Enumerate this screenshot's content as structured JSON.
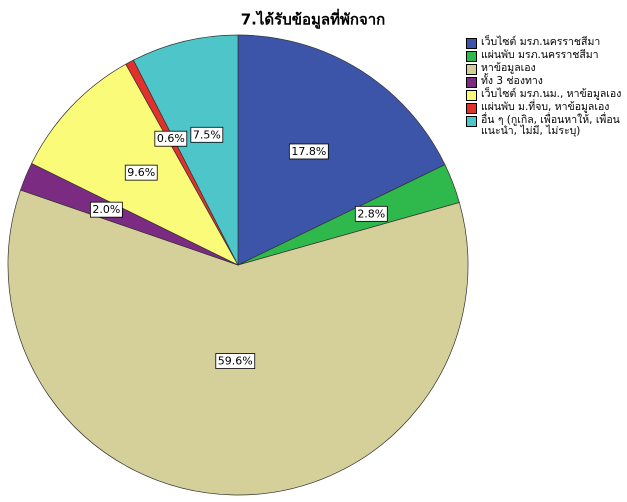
{
  "chart_data": {
    "type": "pie",
    "title": "7.ได้รับข้อมูลที่พักจาก",
    "categories": [
      "เว็บไซต์ มรภ.นครราชสีมา",
      "แผ่นพับ มรภ.นครราชสีมา",
      "หาข้อมูลเอง",
      "ทั้ง 3 ช่องทาง",
      "เว็บไซต์ มรภ.นม., หาข้อมูลเอง",
      "แผ่นพับ ม.ที่จบ, หาข้อมูลเอง",
      "อื่น ๆ (กูเกิล, เพื่อนหาให้, เพื่อนแนะนำ, ไม่มี, ไม่ระบุ)"
    ],
    "values": [
      17.8,
      2.8,
      59.6,
      2.0,
      9.6,
      0.6,
      7.5
    ],
    "value_labels": [
      "17.8%",
      "2.8%",
      "59.6%",
      "2.0%",
      "9.6%",
      "0.6%",
      "7.5%"
    ],
    "colors": [
      "#3c55a9",
      "#2fb84b",
      "#d5d09a",
      "#7b2b82",
      "#fbfb7a",
      "#e2302b",
      "#4dc5c9"
    ],
    "legend": "upper right"
  }
}
